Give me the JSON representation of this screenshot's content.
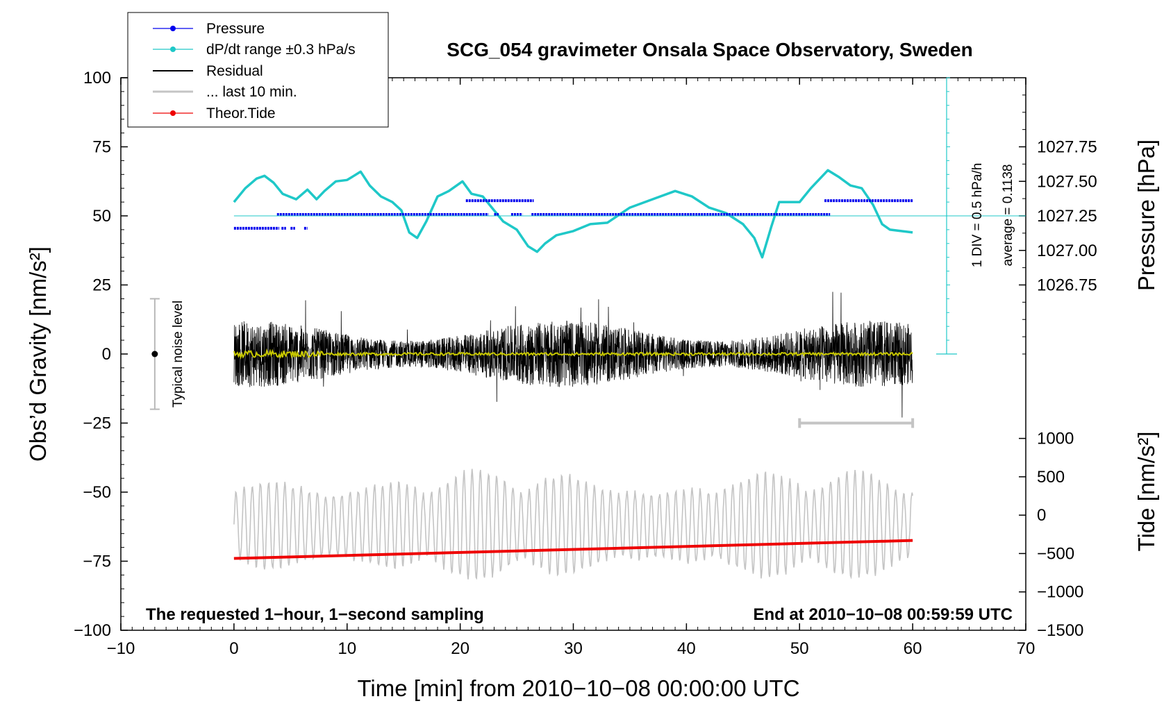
{
  "chart_data": {
    "type": "line",
    "title": "SCG_054 gravimeter Onsala Space Observatory, Sweden",
    "xlabel": "Time [min] from 2010−10−08 00:00:00 UTC",
    "ylabel_left": "Obs’d Gravity [nm/s²]",
    "ylabel_right_pressure": "Pressure [hPa]",
    "ylabel_right_tide": "Tide [nm/s²]",
    "xlim": [
      -10,
      70
    ],
    "ylim_left": [
      -100,
      100
    ],
    "x_ticks": [
      "−10",
      "0",
      "10",
      "20",
      "30",
      "40",
      "50",
      "60",
      "70"
    ],
    "x_tick_values": [
      -10,
      0,
      10,
      20,
      30,
      40,
      50,
      60,
      70
    ],
    "y_ticks_left": [
      "100",
      "75",
      "50",
      "25",
      "0",
      "−25",
      "−50",
      "−75",
      "−100"
    ],
    "y_tick_values_left": [
      100,
      75,
      50,
      25,
      0,
      -25,
      -50,
      -75,
      -100
    ],
    "pressure_axis": {
      "ticks": [
        "1027.75",
        "1027.50",
        "1027.25",
        "1027.00",
        "1026.75"
      ],
      "tick_values": [
        1027.75,
        1027.5,
        1027.25,
        1027.0,
        1026.75
      ],
      "range_in_left_units": [
        0,
        100
      ],
      "range_hpa": [
        1026.25,
        1028.25
      ]
    },
    "tide_axis": {
      "ticks": [
        "1000",
        "500",
        "0",
        "−500",
        "−1000",
        "−1500"
      ],
      "tick_values": [
        1000,
        500,
        0,
        -500,
        -1000,
        -1500
      ],
      "range_in_left_units": [
        -100,
        -16.67
      ],
      "range_nm": [
        -1500,
        1500
      ]
    },
    "legend": [
      {
        "label": "Pressure",
        "color": "#0000ee",
        "marker": "dot"
      },
      {
        "label": "dP/dt range ±0.3 hPa/s",
        "color": "#1fc8c8",
        "marker": "dot"
      },
      {
        "label": "Residual",
        "color": "#000000",
        "marker": "none"
      },
      {
        "label": "... last 10 min.",
        "color": "#c4c4c4",
        "marker": "none"
      },
      {
        "label": "Theor.Tide",
        "color": "#ee0000",
        "marker": "dot"
      }
    ],
    "series": [
      {
        "name": "Pressure",
        "color": "#0000ee",
        "unit": "hPa",
        "segments": [
          {
            "x": [
              0,
              4
            ],
            "value": 1027.16
          },
          {
            "x": [
              4.2,
              4.6
            ],
            "value": 1027.16
          },
          {
            "x": [
              5,
              5.4
            ],
            "value": 1027.16
          },
          {
            "x": [
              6.2,
              6.5
            ],
            "value": 1027.16
          },
          {
            "x": [
              3.8,
              22.5
            ],
            "value": 1027.26
          },
          {
            "x": [
              23,
              23.4
            ],
            "value": 1027.26
          },
          {
            "x": [
              24.5,
              25.5
            ],
            "value": 1027.26
          },
          {
            "x": [
              26.3,
              52.7
            ],
            "value": 1027.26
          },
          {
            "x": [
              20.5,
              26.5
            ],
            "value": 1027.36
          },
          {
            "x": [
              52.2,
              60
            ],
            "value": 1027.36
          }
        ]
      },
      {
        "name": "dP/dt range",
        "color": "#1fc8c8",
        "unit": "nm/s²",
        "x": [
          0,
          1,
          2,
          2.7,
          3.5,
          4.3,
          5.5,
          6.5,
          7.3,
          8,
          9,
          10,
          11.2,
          12,
          13,
          14,
          14.8,
          15.5,
          16.2,
          17,
          18,
          19,
          20.2,
          21,
          22,
          22.8,
          23.8,
          25,
          26,
          26.8,
          27.5,
          28.5,
          30,
          31.5,
          33,
          35,
          37,
          39,
          40.5,
          42,
          43.5,
          45,
          46,
          46.7,
          47.5,
          48.2,
          49,
          50,
          51,
          52.5,
          53.5,
          54.5,
          55.5,
          56.5,
          57.3,
          58,
          59,
          60
        ],
        "values": [
          55,
          60,
          63.5,
          64.5,
          62,
          58,
          56,
          59.5,
          56,
          59,
          62.5,
          63,
          66,
          61,
          57,
          55,
          52,
          44,
          42,
          48,
          57,
          59,
          62.5,
          58,
          57,
          53,
          48,
          45,
          39,
          37,
          40,
          43,
          44.5,
          47,
          47.5,
          53,
          56,
          59,
          57,
          53,
          51,
          47,
          42,
          35,
          46,
          55,
          55,
          55,
          60,
          66.5,
          64,
          61,
          60,
          54,
          47,
          45,
          44.5,
          44
        ]
      },
      {
        "name": "Residual",
        "color": "#000000",
        "unit": "nm/s²",
        "x_range": [
          0,
          60
        ],
        "typical_amplitude": 12,
        "peak_range": [
          -28,
          26
        ]
      },
      {
        "name": "Residual smoothed",
        "color": "#c8c800",
        "unit": "nm/s²",
        "x_range": [
          0,
          60
        ],
        "level": 0
      },
      {
        "name": "... last 10 min.",
        "color": "#c4c4c4",
        "marker_x": [
          50,
          60
        ],
        "level": -25
      },
      {
        "name": "Obs’d gravity (scaled)",
        "color": "#c4c4c4",
        "unit": "nm/s²",
        "x_range": [
          0,
          60
        ],
        "center": -62,
        "amplitude_range": [
          -83,
          -39
        ]
      },
      {
        "name": "Theor.Tide",
        "color": "#ee0000",
        "unit": "nm/s²",
        "x": [
          0,
          60
        ],
        "values": [
          -74,
          -67.5
        ]
      }
    ],
    "pressure_scale": {
      "ticks": [
        50,
        55,
        60,
        65,
        70,
        75,
        80,
        85,
        90,
        95,
        100
      ],
      "labels": [
        "1 DIV = 0.5 hPa/h",
        "average = 0.1138"
      ]
    },
    "noise_level_label": "Typical noise level",
    "noise_range": [
      -20,
      20
    ],
    "footnote_left": "The requested 1−hour, 1−second sampling",
    "footnote_right": "End at 2010−10−08 00:59:59 UTC"
  }
}
